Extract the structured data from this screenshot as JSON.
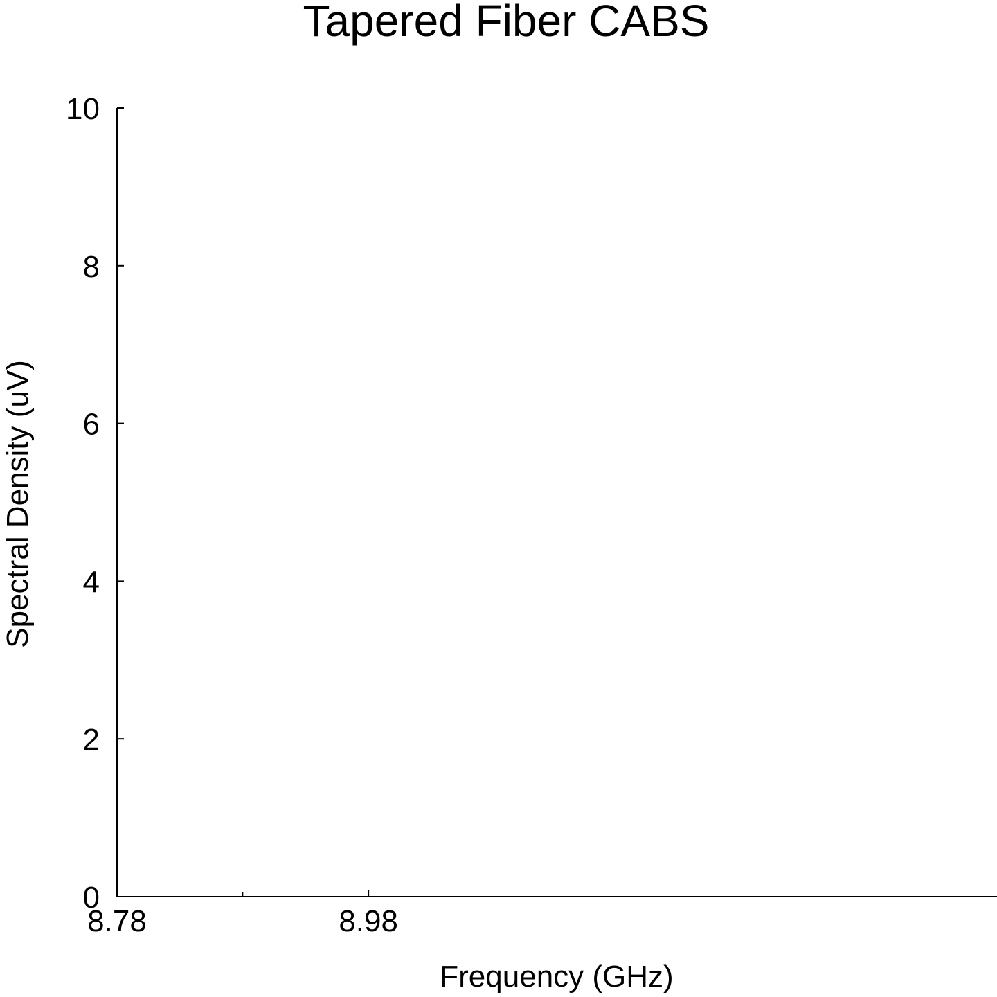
{
  "chart_data": {
    "type": "line",
    "title": "Tapered Fiber CABS",
    "xlabel": "Frequency (GHz)",
    "ylabel": "Spectral Density (uV)",
    "xlim": [
      8.78,
      9.48
    ],
    "ylim": [
      0,
      10
    ],
    "x_ticks": [
      {
        "value": 8.78,
        "label": "8.78"
      },
      {
        "value": 8.98,
        "label": "8.98"
      }
    ],
    "x_minor_ticks": [
      8.88
    ],
    "y_ticks": [
      {
        "value": 0,
        "label": "0"
      },
      {
        "value": 2,
        "label": "2"
      },
      {
        "value": 4,
        "label": "4"
      },
      {
        "value": 6,
        "label": "6"
      },
      {
        "value": 8,
        "label": "8"
      },
      {
        "value": 10,
        "label": "10"
      }
    ],
    "grid": false,
    "legend": "none",
    "series": [],
    "colors": {
      "axis": "#000000",
      "background": "#ffffff"
    }
  }
}
